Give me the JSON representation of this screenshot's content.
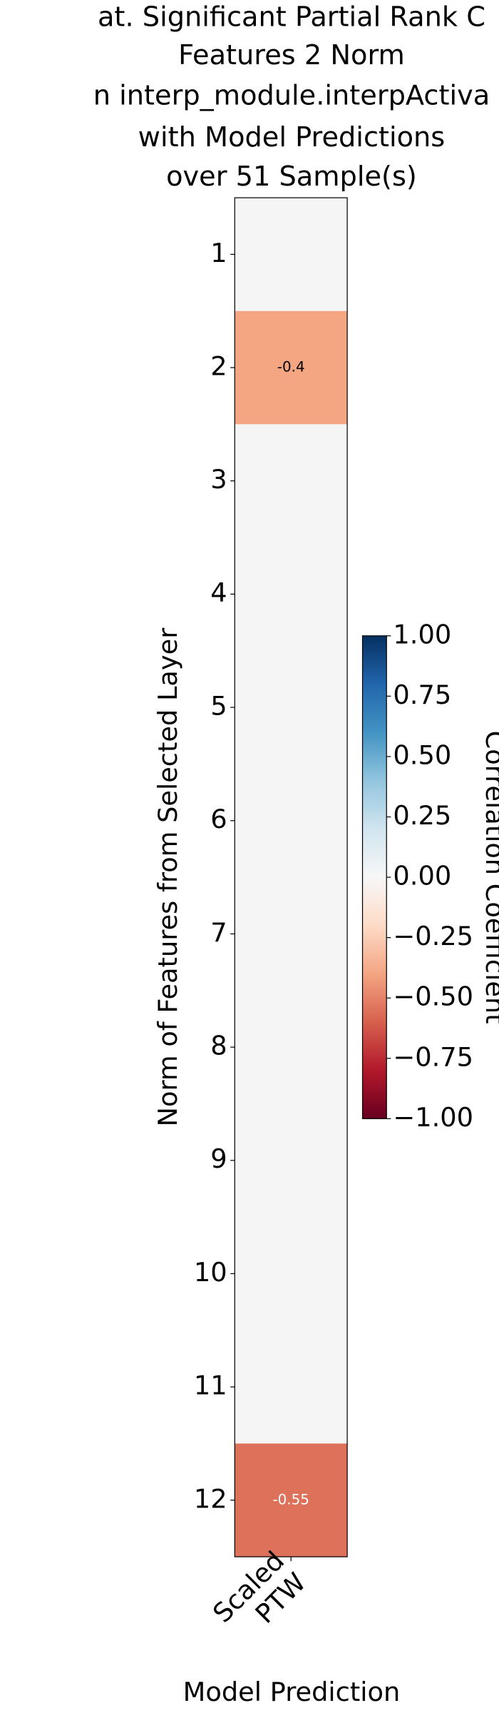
{
  "chart_data": {
    "type": "heatmap",
    "title": [
      "at. Significant Partial Rank C",
      "Features 2 Norm",
      "n interp_module.interpActiva",
      "with Model Predictions",
      "over 51  Sample(s)"
    ],
    "x_label": "Model Prediction",
    "y_label": "Norm of Features from Selected Layer",
    "colorbar_label": "Correlation Coefficient",
    "x_categories": [
      "Scaled\nPTW"
    ],
    "y_categories": [
      "1",
      "2",
      "3",
      "4",
      "5",
      "6",
      "7",
      "8",
      "9",
      "10",
      "11",
      "12"
    ],
    "values": [
      [
        null
      ],
      [
        -0.4
      ],
      [
        null
      ],
      [
        null
      ],
      [
        null
      ],
      [
        null
      ],
      [
        null
      ],
      [
        null
      ],
      [
        null
      ],
      [
        null
      ],
      [
        null
      ],
      [
        -0.55
      ]
    ],
    "colormap": "RdBu",
    "clim": [
      -1,
      1
    ],
    "cticks": [
      {
        "value": -1,
        "label": "−1.00"
      },
      {
        "value": -0.75,
        "label": "−0.75"
      },
      {
        "value": -0.5,
        "label": "−0.50"
      },
      {
        "value": -0.25,
        "label": "−0.25"
      },
      {
        "value": 0,
        "label": "0.00"
      },
      {
        "value": 0.25,
        "label": "0.25"
      },
      {
        "value": 0.5,
        "label": "0.50"
      },
      {
        "value": 0.75,
        "label": "0.75"
      },
      {
        "value": 1,
        "label": "1.00"
      }
    ]
  }
}
